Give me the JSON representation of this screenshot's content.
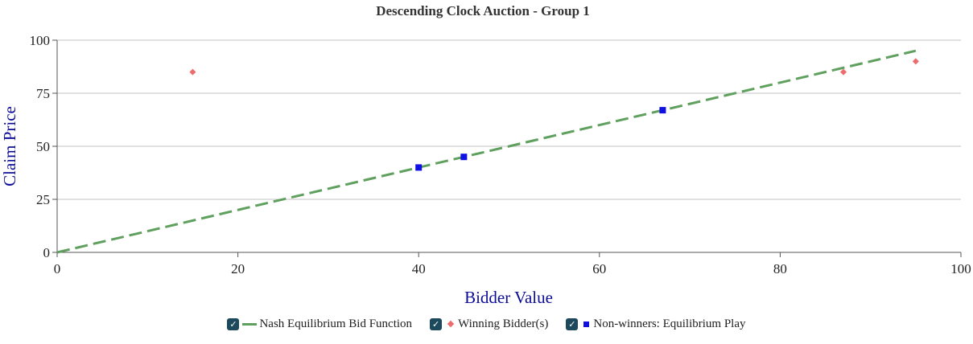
{
  "chart_data": {
    "type": "scatter",
    "title": "Descending Clock Auction - Group 1",
    "xlabel": "Bidder Value",
    "ylabel": "Claim Price",
    "xlim": [
      0,
      100
    ],
    "ylim": [
      0,
      100
    ],
    "x_ticks": [
      0,
      20,
      40,
      60,
      80,
      100
    ],
    "y_ticks": [
      0,
      25,
      50,
      75,
      100
    ],
    "grid": "horizontal",
    "legend_position": "bottom",
    "series": [
      {
        "name": "Nash Equilibrium Bid Function",
        "kind": "line",
        "style": "dashed",
        "color": "#5fa05f",
        "points": [
          [
            0,
            0
          ],
          [
            95,
            95
          ]
        ]
      },
      {
        "name": "Winning Bidder(s)",
        "kind": "scatter",
        "marker": "diamond",
        "color": "#ee6b6b",
        "points": [
          [
            15,
            85
          ],
          [
            87,
            85
          ],
          [
            95,
            90
          ]
        ]
      },
      {
        "name": "Non-winners: Equilibrium Play",
        "kind": "scatter",
        "marker": "square",
        "color": "#1010e0",
        "points": [
          [
            40,
            40
          ],
          [
            45,
            45
          ],
          [
            67,
            67
          ]
        ]
      }
    ]
  },
  "legend": {
    "items": [
      {
        "label": "Nash Equilibrium Bid Function",
        "checked": true,
        "checkmark": "✓"
      },
      {
        "label": "Winning Bidder(s)",
        "checked": true,
        "checkmark": "✓"
      },
      {
        "label": "Non-winners: Equilibrium Play",
        "checked": true,
        "checkmark": "✓"
      }
    ]
  }
}
